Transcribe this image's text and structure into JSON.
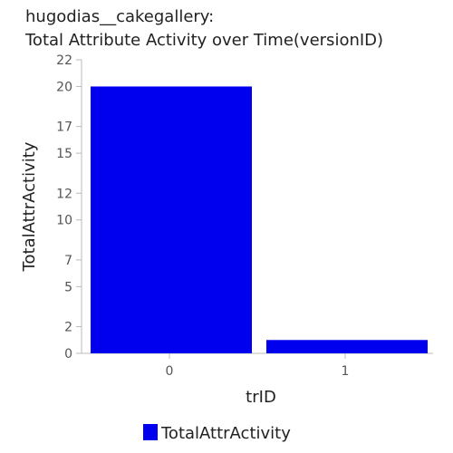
{
  "chart_data": {
    "type": "bar",
    "title_line1": "hugodias__cakegallery:",
    "title_line2": "Total Attribute Activity over Time(versionID)",
    "xlabel": "trID",
    "ylabel": "TotalAttrActivity",
    "categories": [
      "0",
      "1"
    ],
    "series": [
      {
        "name": "TotalAttrActivity",
        "values": [
          20,
          1
        ],
        "color": "#0000ee"
      }
    ],
    "ylim": [
      0,
      22
    ],
    "yticks": [
      0,
      2,
      5,
      7,
      10,
      12,
      15,
      17,
      20,
      22
    ],
    "grid": false,
    "legend_position": "bottom"
  }
}
